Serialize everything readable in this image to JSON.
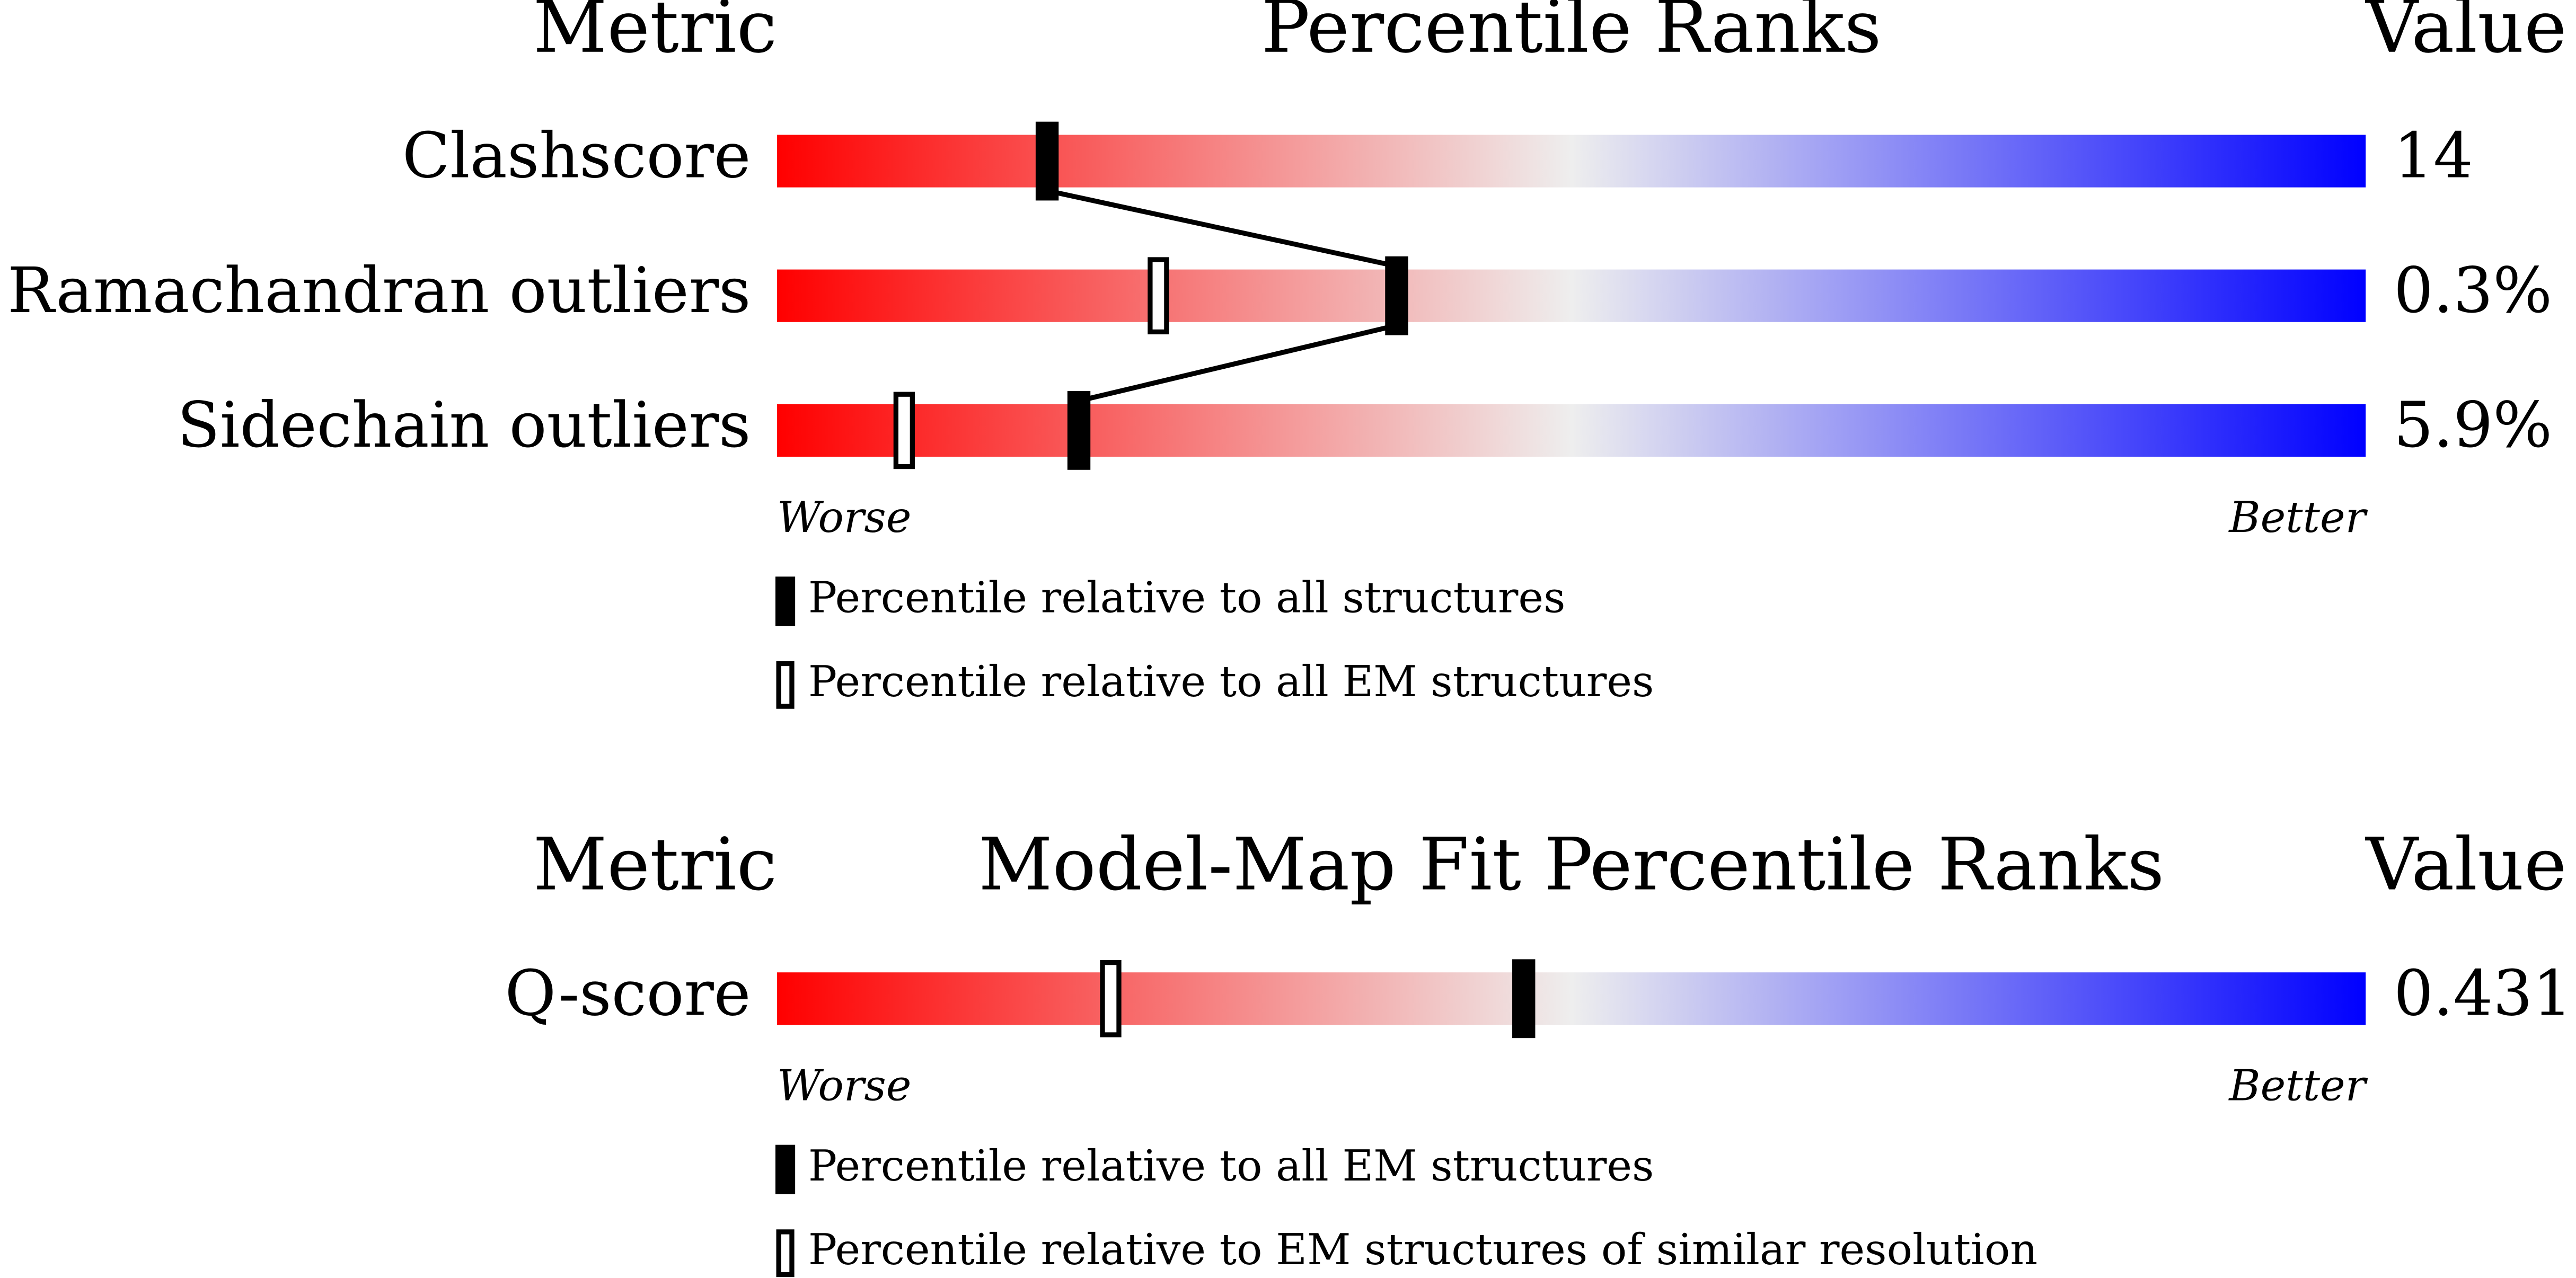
{
  "chart_data": [
    {
      "type": "slider",
      "header_metric": "Metric",
      "title": "Percentile Ranks",
      "header_value": "Value",
      "categories": [
        "Clashscore",
        "Ramachandran outliers",
        "Sidechain outliers"
      ],
      "metric_values": [
        "14",
        "0.3%",
        "5.9%"
      ],
      "series": [
        {
          "name": "Percentile relative to all structures",
          "style": "filled",
          "color": "#000000",
          "values": [
            17,
            39,
            19
          ]
        },
        {
          "name": "Percentile relative to all EM structures",
          "style": "open",
          "color": "#000000",
          "values": [
            null,
            24,
            8
          ]
        }
      ],
      "xlim": [
        0,
        100
      ],
      "worse_label": "Worse",
      "better_label": "Better",
      "gradient": [
        "#ff0000",
        "#eeeeee",
        "#0000ff"
      ],
      "connect": "filled"
    },
    {
      "type": "slider",
      "header_metric": "Metric",
      "title": "Model-Map Fit Percentile Ranks",
      "header_value": "Value",
      "categories": [
        "Q-score"
      ],
      "metric_values": [
        "0.431"
      ],
      "series": [
        {
          "name": "Percentile relative to all EM structures",
          "style": "filled",
          "color": "#000000",
          "values": [
            47
          ]
        },
        {
          "name": "Percentile relative to EM structures of similar resolution",
          "style": "open",
          "color": "#000000",
          "values": [
            21
          ]
        }
      ],
      "xlim": [
        0,
        100
      ],
      "worse_label": "Worse",
      "better_label": "Better",
      "gradient": [
        "#ff0000",
        "#eeeeee",
        "#0000ff"
      ],
      "connect": "filled"
    }
  ]
}
